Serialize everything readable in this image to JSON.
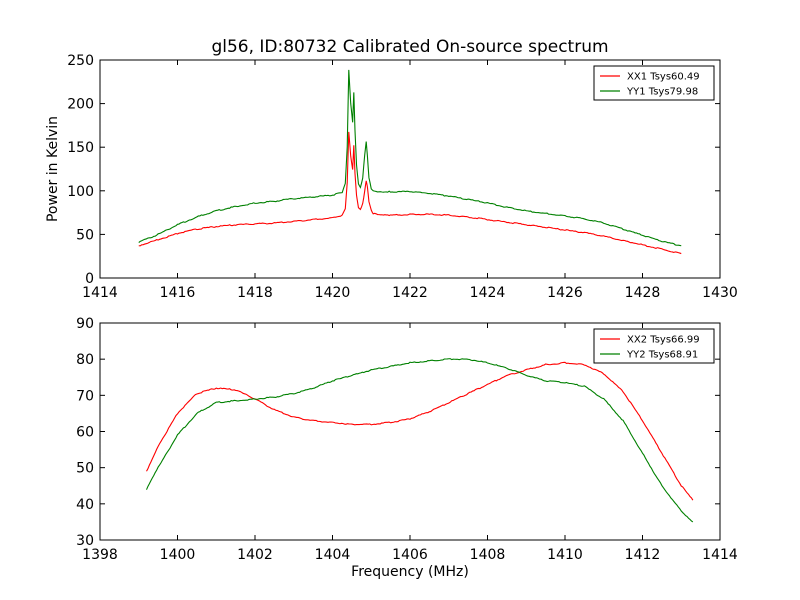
{
  "title": "gl56, ID:80732 Calibrated On-source spectrum",
  "chart_data": [
    {
      "type": "line",
      "title": "gl56, ID:80732 Calibrated On-source spectrum",
      "xlabel": "",
      "ylabel": "Power in Kelvin",
      "xlim": [
        1414,
        1430
      ],
      "ylim": [
        0,
        250
      ],
      "xticks": [
        "1414",
        "1416",
        "1418",
        "1420",
        "1422",
        "1424",
        "1426",
        "1428",
        "1430"
      ],
      "yticks": [
        "0",
        "50",
        "100",
        "150",
        "200",
        "250"
      ],
      "grid": false,
      "legend": "top-right",
      "series": [
        {
          "name": "XX1 Tsys60.49",
          "color": "#ff0000",
          "x": [
            1415.0,
            1415.5,
            1416.0,
            1416.5,
            1417.0,
            1417.5,
            1418.0,
            1418.5,
            1419.0,
            1419.5,
            1420.0,
            1420.25,
            1420.33,
            1420.38,
            1420.42,
            1420.47,
            1420.52,
            1420.55,
            1420.58,
            1420.62,
            1420.67,
            1420.72,
            1420.78,
            1420.83,
            1420.87,
            1420.9,
            1420.94,
            1421.0,
            1421.05,
            1421.2,
            1421.5,
            1422.0,
            1422.5,
            1423.0,
            1423.5,
            1424.0,
            1424.5,
            1425.0,
            1425.5,
            1426.0,
            1426.5,
            1427.0,
            1427.5,
            1428.0,
            1428.5,
            1429.0
          ],
          "values": [
            37,
            44,
            51,
            56,
            59,
            61,
            62,
            63,
            65,
            67,
            69,
            72,
            80,
            110,
            168,
            140,
            125,
            152,
            120,
            95,
            80,
            78,
            85,
            100,
            112,
            105,
            88,
            78,
            74,
            72,
            72,
            73,
            73,
            72,
            70,
            67,
            64,
            61,
            58,
            55,
            52,
            48,
            43,
            38,
            33,
            28
          ]
        },
        {
          "name": "YY1 Tsys79.98",
          "color": "#008000",
          "x": [
            1415.0,
            1415.5,
            1416.0,
            1416.5,
            1417.0,
            1417.5,
            1418.0,
            1418.5,
            1419.0,
            1419.5,
            1420.0,
            1420.25,
            1420.33,
            1420.38,
            1420.42,
            1420.47,
            1420.52,
            1420.55,
            1420.58,
            1420.62,
            1420.67,
            1420.72,
            1420.78,
            1420.83,
            1420.87,
            1420.9,
            1420.94,
            1421.0,
            1421.05,
            1421.2,
            1421.5,
            1422.0,
            1422.5,
            1423.0,
            1423.5,
            1424.0,
            1424.5,
            1425.0,
            1425.5,
            1426.0,
            1426.5,
            1427.0,
            1427.5,
            1428.0,
            1428.5,
            1429.0
          ],
          "values": [
            41,
            50,
            61,
            70,
            77,
            82,
            86,
            88,
            91,
            93,
            95,
            98,
            108,
            150,
            238,
            200,
            178,
            213,
            170,
            130,
            108,
            104,
            115,
            140,
            156,
            140,
            115,
            102,
            100,
            99,
            99,
            99,
            97,
            94,
            90,
            86,
            81,
            77,
            74,
            71,
            68,
            63,
            56,
            49,
            42,
            37
          ]
        }
      ]
    },
    {
      "type": "line",
      "title": "",
      "xlabel": "Frequency (MHz)",
      "ylabel": "",
      "xlim": [
        1398,
        1414
      ],
      "ylim": [
        30,
        90
      ],
      "xticks": [
        "1398",
        "1400",
        "1402",
        "1404",
        "1406",
        "1408",
        "1410",
        "1412",
        "1414"
      ],
      "yticks": [
        "30",
        "40",
        "50",
        "60",
        "70",
        "80",
        "90"
      ],
      "grid": false,
      "legend": "top-right",
      "series": [
        {
          "name": "XX2 Tsys66.99",
          "color": "#ff0000",
          "x": [
            1399.2,
            1399.5,
            1400.0,
            1400.5,
            1401.0,
            1401.5,
            1402.0,
            1402.5,
            1403.0,
            1403.5,
            1404.0,
            1404.5,
            1405.0,
            1405.5,
            1406.0,
            1406.5,
            1407.0,
            1407.5,
            1408.0,
            1408.5,
            1409.0,
            1409.5,
            1410.0,
            1410.5,
            1411.0,
            1411.5,
            1412.0,
            1412.5,
            1413.0,
            1413.3
          ],
          "values": [
            49,
            56,
            65,
            70.5,
            72,
            71.5,
            69,
            66,
            64,
            63,
            62.5,
            62,
            62,
            62.5,
            63.5,
            65.5,
            68,
            70.5,
            73,
            75.5,
            77,
            78.5,
            79,
            78.5,
            76,
            71,
            63,
            54,
            45,
            41
          ]
        },
        {
          "name": "YY2 Tsys68.91",
          "color": "#008000",
          "x": [
            1399.2,
            1399.5,
            1400.0,
            1400.5,
            1401.0,
            1401.5,
            1402.0,
            1402.5,
            1403.0,
            1403.5,
            1404.0,
            1404.5,
            1405.0,
            1405.5,
            1406.0,
            1406.5,
            1407.0,
            1407.5,
            1408.0,
            1408.5,
            1409.0,
            1409.5,
            1410.0,
            1410.5,
            1411.0,
            1411.5,
            1412.0,
            1412.5,
            1413.0,
            1413.3
          ],
          "values": [
            44,
            50,
            59,
            65,
            68,
            68.5,
            69,
            69.5,
            70.5,
            72,
            74,
            75.5,
            77,
            78,
            79,
            79.5,
            80,
            80,
            79,
            77.5,
            75.5,
            74,
            73.5,
            72.5,
            69,
            63,
            54,
            45,
            38,
            35
          ]
        }
      ]
    }
  ]
}
